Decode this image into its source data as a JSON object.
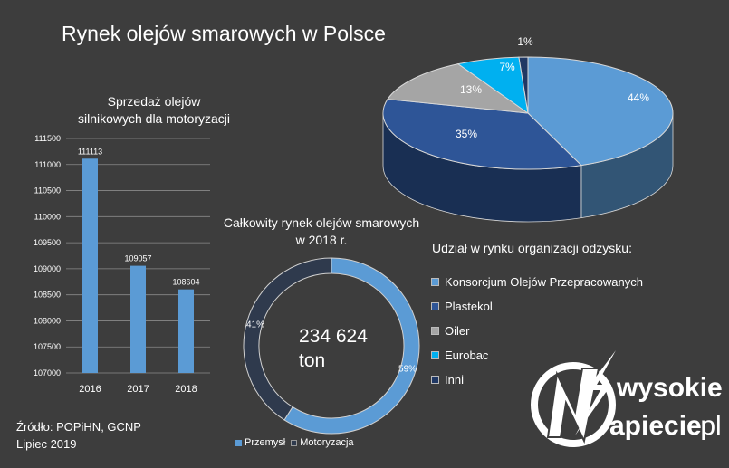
{
  "title": "Rynek olejów smarowych w Polsce",
  "source": {
    "line1": "Źródło: POPiHN, GCNP",
    "line2": "Lipiec 2019"
  },
  "logo": {
    "word1": "wysokie",
    "word2": "apiecie",
    "suffix": ".pl",
    "icon": "lightning-n-icon"
  },
  "chart_data": [
    {
      "type": "bar",
      "title_lines": [
        "Sprzedaż olejów",
        "silnikowych dla motoryzacji"
      ],
      "categories": [
        "2016",
        "2017",
        "2018"
      ],
      "values": [
        111113,
        109057,
        108604
      ],
      "value_labels": [
        "111113",
        "109057",
        "108604"
      ],
      "yticks": [
        "111500",
        "111000",
        "110500",
        "110000",
        "109500",
        "109000",
        "108500",
        "108000",
        "107500",
        "107000"
      ],
      "ylim": [
        107000,
        111500
      ],
      "color": "#5b9bd5",
      "grid": true
    },
    {
      "type": "pie",
      "subtype": "donut",
      "title_lines": [
        "Całkowity rynek olejów smarowych",
        "w 2018 r."
      ],
      "center_lines": [
        "234 624",
        "ton"
      ],
      "slices": [
        {
          "name": "Przemysł",
          "value": 59,
          "label": "59%",
          "color": "#5b9bd5"
        },
        {
          "name": "Motoryzacja",
          "value": 41,
          "label": "41%",
          "color": "#2f3a4d"
        }
      ],
      "legend": "bottom"
    },
    {
      "type": "pie",
      "subtype": "3d",
      "legend_title": "Udział w rynku organizacji odzysku:",
      "slices": [
        {
          "name": "Konsorcjum Olejów Przepracowanych",
          "value": 44,
          "label": "44%",
          "color": "#5b9bd5"
        },
        {
          "name": "Plastekol",
          "value": 35,
          "label": "35%",
          "color": "#2e5597"
        },
        {
          "name": "Oiler",
          "value": 13,
          "label": "13%",
          "color": "#a5a5a5"
        },
        {
          "name": "Eurobac",
          "value": 7,
          "label": "7%",
          "color": "#00b0f0"
        },
        {
          "name": "Inni",
          "value": 1,
          "label": "1%",
          "color": "#203864"
        }
      ],
      "legend": "right"
    }
  ]
}
